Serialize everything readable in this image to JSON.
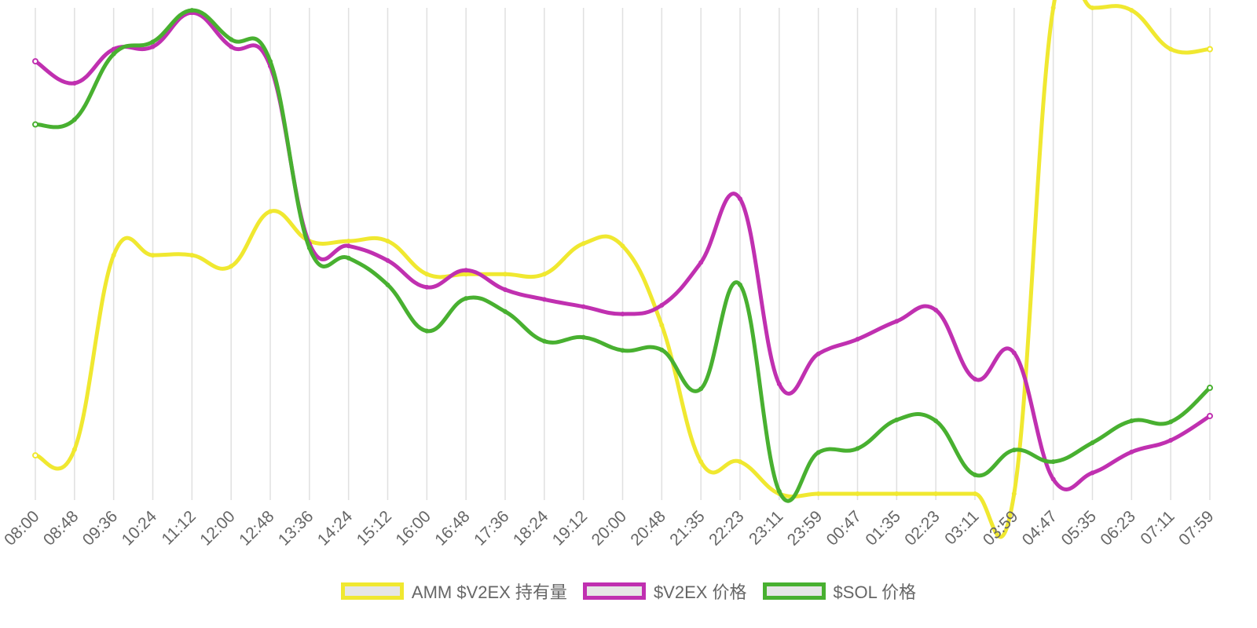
{
  "chart_data": {
    "type": "line",
    "x": [
      "08:00",
      "08:48",
      "09:36",
      "10:24",
      "11:12",
      "12:00",
      "12:48",
      "13:36",
      "14:24",
      "15:12",
      "16:00",
      "16:48",
      "17:36",
      "18:24",
      "19:12",
      "20:00",
      "20:48",
      "21:35",
      "22:23",
      "23:11",
      "23:59",
      "00:47",
      "01:35",
      "02:23",
      "03:11",
      "03:59",
      "04:47",
      "05:35",
      "06:23",
      "07:11",
      "07:59"
    ],
    "ylim": [
      0,
      100
    ],
    "grid": {
      "vertical": true,
      "horizontal": false
    },
    "legend_position": "bottom",
    "series": [
      {
        "name": "AMM $V2EX 持有量",
        "color": "#f0e830",
        "values": [
          7.9,
          9.1,
          49.1,
          49.1,
          49.1,
          46.8,
          58.1,
          52.0,
          52.0,
          52.0,
          45.2,
          45.2,
          45.2,
          45.2,
          51.5,
          51.0,
          34.7,
          6.6,
          6.6,
          0.0,
          0.0,
          0.0,
          0.0,
          0.0,
          0.0,
          0.0,
          100.0,
          100.0,
          99.5,
          91.5,
          91.5
        ]
      },
      {
        "name": "$V2EX 价格",
        "color": "#c030b0",
        "values": [
          89.0,
          84.5,
          91.5,
          92.0,
          99.0,
          92.0,
          88.0,
          51.5,
          51.0,
          48.0,
          42.5,
          46.0,
          42.0,
          40.0,
          38.5,
          37.0,
          38.8,
          47.6,
          60.7,
          22.6,
          28.8,
          31.8,
          35.5,
          37.8,
          23.6,
          29.0,
          3.0,
          4.3,
          8.6,
          11.0,
          16.0
        ]
      },
      {
        "name": "$SOL 价格",
        "color": "#48b030",
        "values": [
          76.0,
          77.0,
          90.5,
          93.0,
          99.5,
          93.5,
          89.0,
          50.6,
          48.5,
          43.0,
          33.5,
          40.2,
          37.5,
          31.4,
          32.2,
          29.5,
          29.6,
          21.6,
          43.0,
          0.5,
          8.5,
          9.3,
          15.2,
          15.0,
          3.9,
          9.0,
          6.6,
          10.5,
          15.0,
          14.8,
          21.8
        ]
      }
    ]
  },
  "legend": {
    "items": [
      {
        "label": "AMM $V2EX 持有量",
        "color": "#f0e830"
      },
      {
        "label": "$V2EX 价格",
        "color": "#c030b0"
      },
      {
        "label": "$SOL 价格",
        "color": "#48b030"
      }
    ]
  }
}
